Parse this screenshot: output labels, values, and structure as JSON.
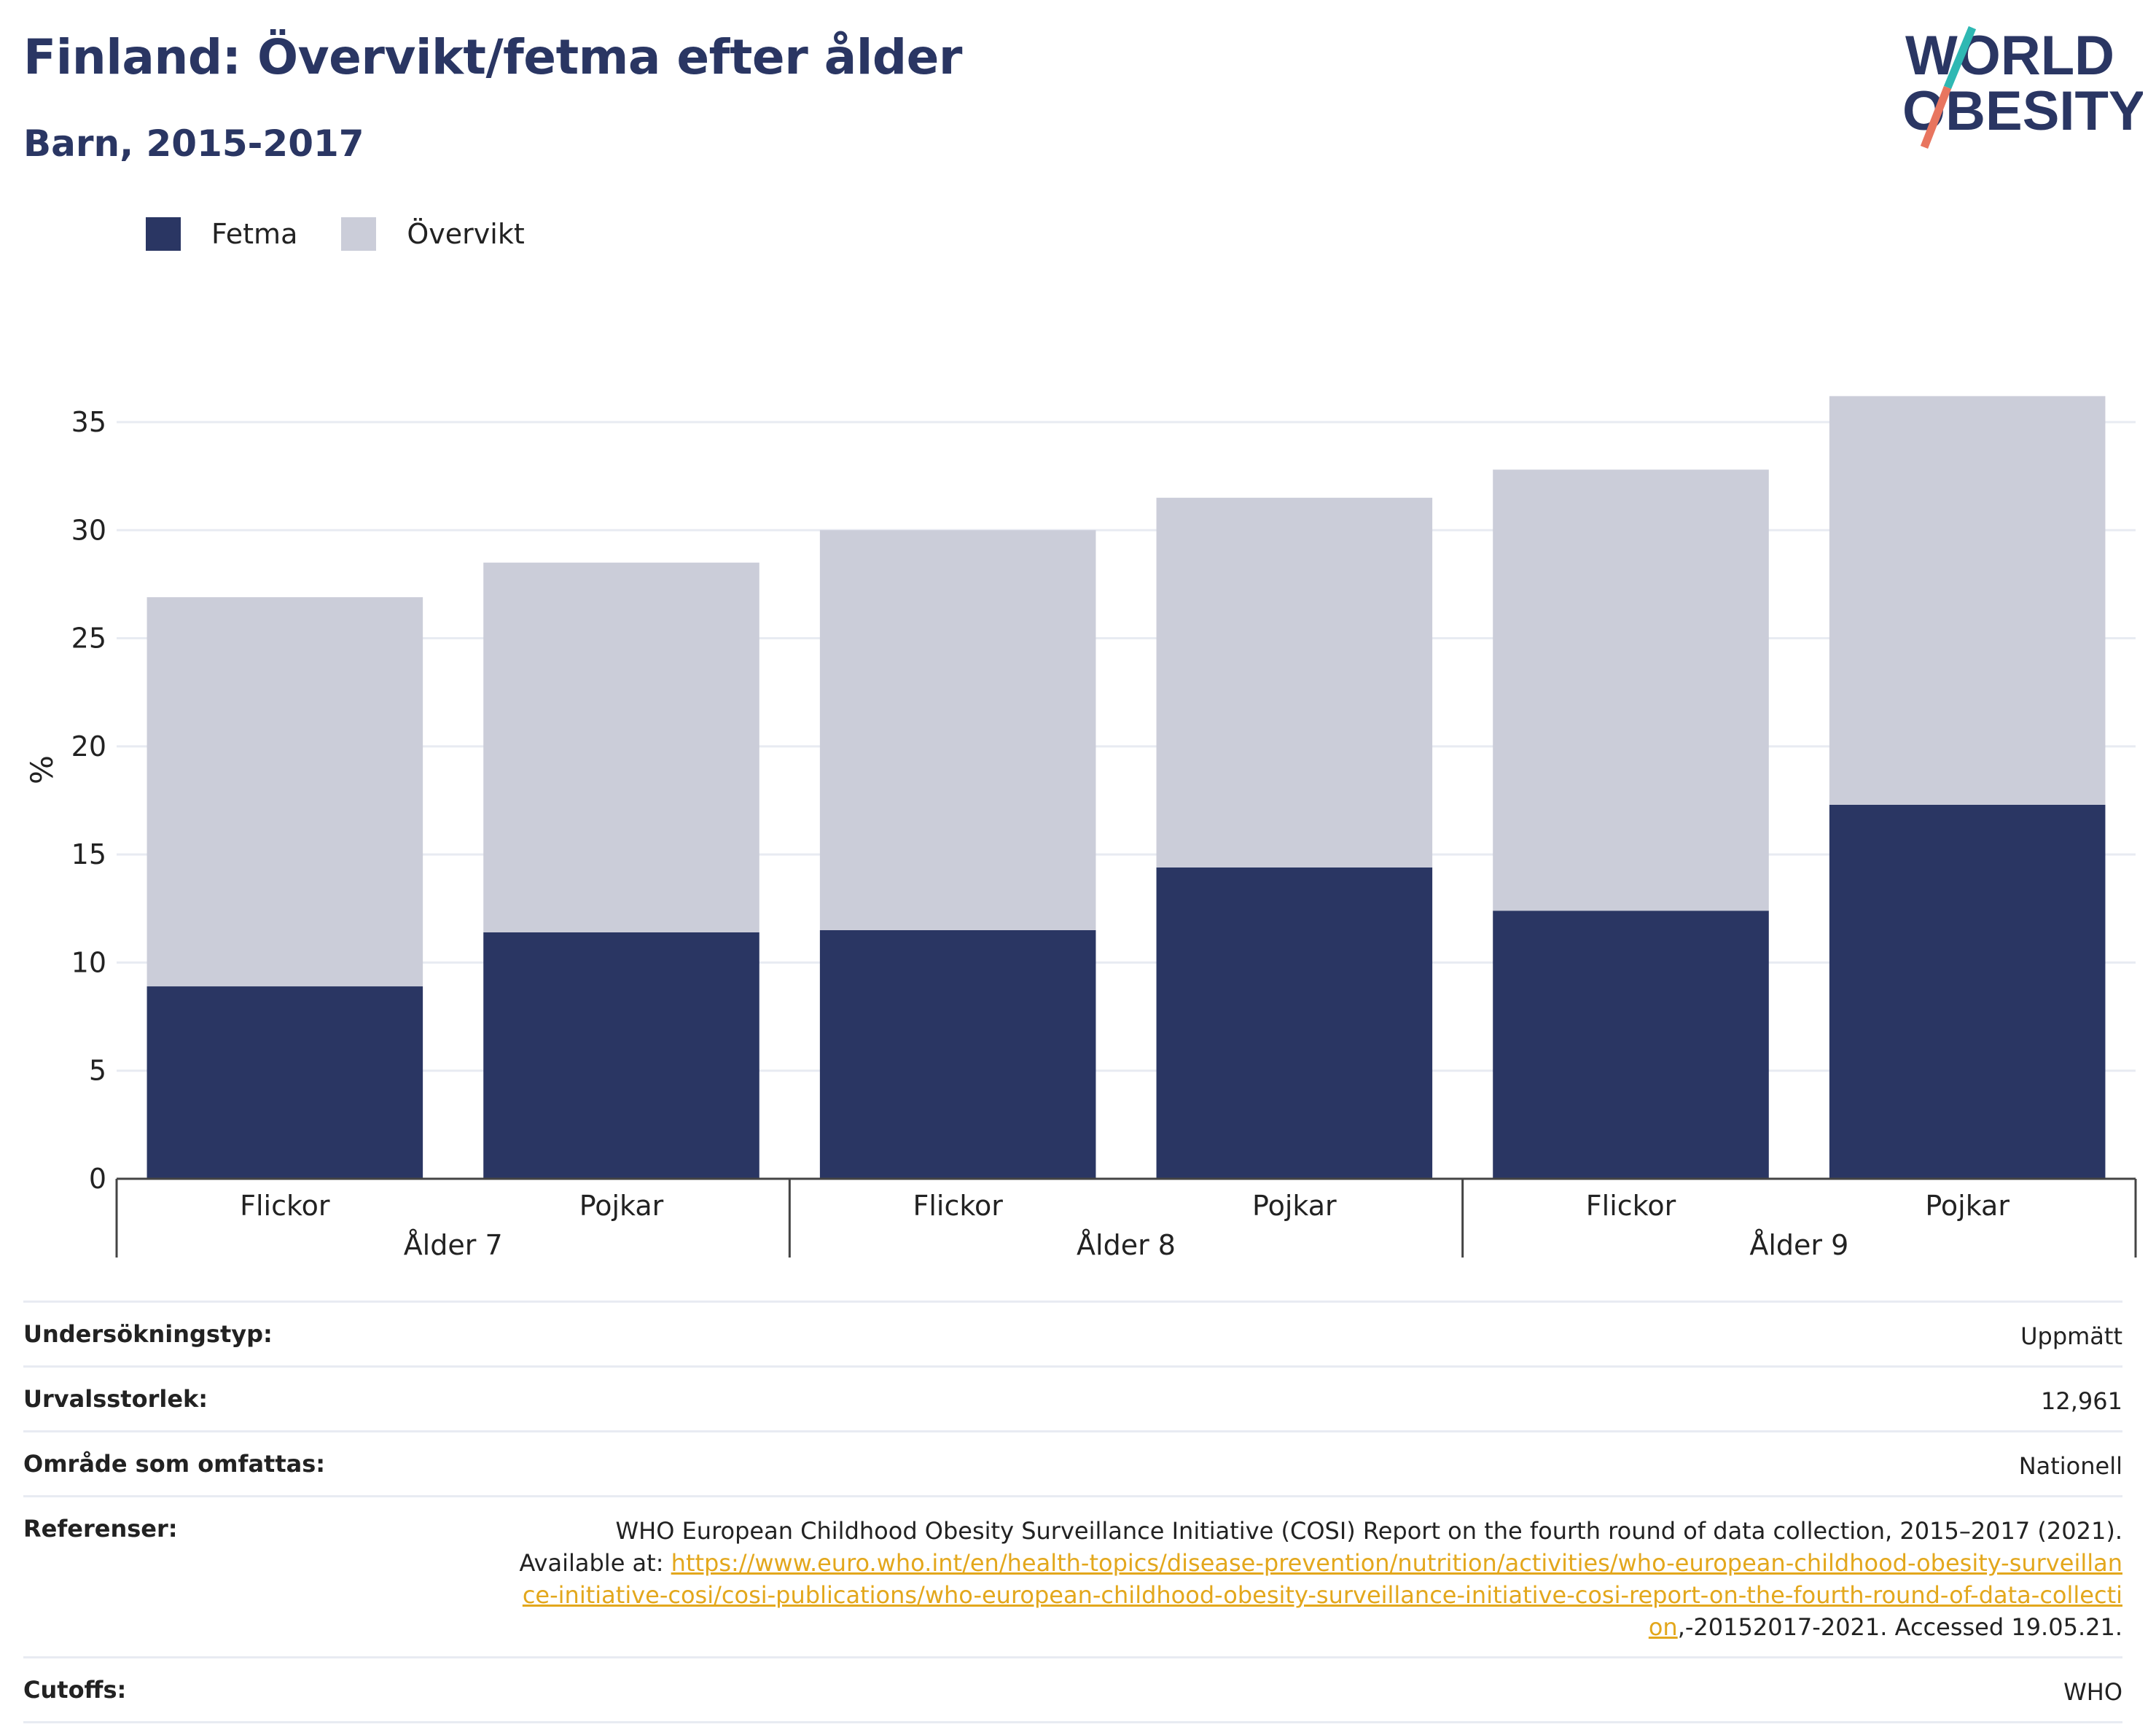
{
  "header": {
    "title": "Finland: Övervikt/fetma efter ålder",
    "subtitle": "Barn, 2015-2017"
  },
  "logo": {
    "line1": "WORLD",
    "line2": "OBESITY"
  },
  "colors": {
    "fetma": "#2a3663",
    "overvikt": "#cbcdd9",
    "text": "#2a3663",
    "link": "#e3a71c"
  },
  "chart_data": {
    "type": "bar",
    "stacked": true,
    "categories": [
      "Flickor",
      "Pojkar",
      "Flickor",
      "Pojkar",
      "Flickor",
      "Pojkar"
    ],
    "groups": [
      {
        "label": "Ålder 7",
        "span": 2
      },
      {
        "label": "Ålder 8",
        "span": 2
      },
      {
        "label": "Ålder 9",
        "span": 2
      }
    ],
    "series": [
      {
        "name": "Fetma",
        "color": "#2a3663",
        "values": [
          8.9,
          11.4,
          11.5,
          14.4,
          12.4,
          17.3
        ]
      },
      {
        "name": "Övervikt",
        "color": "#cbcdd9",
        "values": [
          18.0,
          17.1,
          18.5,
          17.1,
          20.4,
          18.9
        ]
      }
    ],
    "ylabel": "%",
    "xlabel": "",
    "ylim": [
      0,
      38
    ],
    "yticks": [
      0,
      5,
      10,
      15,
      20,
      25,
      30,
      35
    ],
    "grid": true,
    "legend": "top-left"
  },
  "info": {
    "survey_type": {
      "label": "Undersökningstyp:",
      "value": "Uppmätt"
    },
    "sample_size": {
      "label": "Urvalsstorlek:",
      "value": "12,961"
    },
    "area": {
      "label": "Område som omfattas:",
      "value": "Nationell"
    },
    "references": {
      "label": "Referenser:",
      "text_before": "WHO European Childhood Obesity Surveillance Initiative (COSI) Report on the fourth round of data collection, 2015–2017 (2021). Available at: ",
      "link": "https://www.euro.who.int/en/health-topics/disease-prevention/nutrition/activities/who-european-childhood-obesity-surveillance-initiative-cosi/cosi-publications/who-european-childhood-obesity-surveillance-initiative-cosi-report-on-the-fourth-round-of-data-collection",
      "text_after": ",-20152017-2021. Accessed 19.05.21."
    },
    "cutoffs": {
      "label": "Cutoffs:",
      "value": "WHO"
    }
  }
}
